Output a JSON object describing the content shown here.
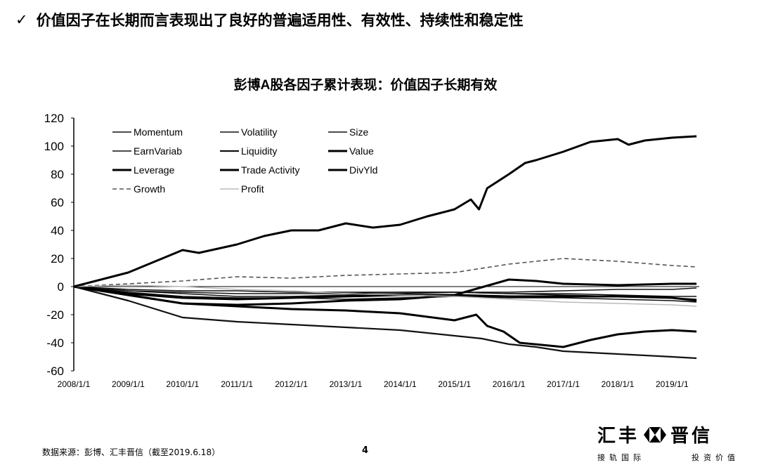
{
  "header": {
    "check_icon": "check-icon",
    "headline": "价值因子在长期而言表现出了良好的普遍适用性、有效性、持续性和稳定性"
  },
  "chart_data": {
    "type": "line",
    "title": "彭博A股各因子累计表现：价值因子长期有效",
    "xlabel": "",
    "ylabel": "",
    "ylim": [
      -60,
      120
    ],
    "yticks": [
      "120",
      "100",
      "80",
      "60",
      "40",
      "20",
      "0",
      "-20",
      "-40",
      "-60"
    ],
    "xlim": [
      2008.0,
      2019.5
    ],
    "xticks": [
      {
        "label": "2008/1/1",
        "value": 2008
      },
      {
        "label": "2009/1/1",
        "value": 2009
      },
      {
        "label": "2010/1/1",
        "value": 2010
      },
      {
        "label": "2011/1/1",
        "value": 2011
      },
      {
        "label": "2012/1/1",
        "value": 2012
      },
      {
        "label": "2013/1/1",
        "value": 2013
      },
      {
        "label": "2014/1/1",
        "value": 2014
      },
      {
        "label": "2015/1/1",
        "value": 2015
      },
      {
        "label": "2016/1/1",
        "value": 2016
      },
      {
        "label": "2017/1/1",
        "value": 2017
      },
      {
        "label": "2018/1/1",
        "value": 2018
      },
      {
        "label": "2019/1/1",
        "value": 2019
      }
    ],
    "grid": false,
    "legend_placement": "top-left",
    "series": [
      {
        "name": "Momentum",
        "style": "solid-thin",
        "x": [
          2008,
          2009,
          2010,
          2011,
          2012,
          2013,
          2014,
          2015,
          2016,
          2017,
          2018,
          2019,
          2019.45
        ],
        "y": [
          0,
          -3,
          -5,
          -7,
          -7,
          -6,
          -5,
          -4,
          -4,
          -3,
          -2,
          -2,
          -1
        ]
      },
      {
        "name": "Volatility",
        "style": "solid-thin",
        "x": [
          2008,
          2009,
          2010,
          2011,
          2012,
          2013,
          2014,
          2015,
          2016,
          2017,
          2018,
          2019,
          2019.45
        ],
        "y": [
          0,
          -3,
          -4,
          -5,
          -5,
          -5,
          -4,
          -4,
          -5,
          -6,
          -7,
          -8,
          -9
        ]
      },
      {
        "name": "Size",
        "style": "solid-thin",
        "x": [
          2008,
          2009,
          2010,
          2011,
          2012,
          2013,
          2014,
          2015,
          2016,
          2017,
          2018,
          2019,
          2019.45
        ],
        "y": [
          0,
          -4,
          -7,
          -8,
          -8,
          -9,
          -8,
          -7,
          -8,
          -8,
          -9,
          -10,
          -11
        ]
      },
      {
        "name": "EarnVariab",
        "style": "solid-thin",
        "x": [
          2008,
          2009,
          2010,
          2011,
          2012,
          2013,
          2014,
          2015,
          2016,
          2017,
          2018,
          2019,
          2019.45
        ],
        "y": [
          0,
          -2,
          -3,
          -3,
          -4,
          -4,
          -4,
          -4,
          -5,
          -5,
          -6,
          -7,
          -7
        ]
      },
      {
        "name": "Liquidity",
        "style": "solid",
        "x": [
          2008,
          2009,
          2010,
          2011,
          2012,
          2013,
          2014,
          2015,
          2015.5,
          2016,
          2016.5,
          2017,
          2018,
          2019,
          2019.45
        ],
        "y": [
          0,
          -10,
          -22,
          -25,
          -27,
          -29,
          -31,
          -35,
          -37,
          -41,
          -43,
          -46,
          -48,
          -50,
          -51
        ]
      },
      {
        "name": "Value",
        "style": "solid-thick",
        "x": [
          2008,
          2009,
          2009.5,
          2010,
          2010.3,
          2011,
          2011.5,
          2012,
          2012.5,
          2013,
          2013.5,
          2014,
          2014.5,
          2015,
          2015.3,
          2015.45,
          2015.6,
          2016,
          2016.3,
          2016.5,
          2017,
          2017.5,
          2018,
          2018.2,
          2018.5,
          2019,
          2019.45
        ],
        "y": [
          0,
          10,
          18,
          26,
          24,
          30,
          36,
          40,
          40,
          45,
          42,
          44,
          50,
          55,
          62,
          55,
          70,
          80,
          88,
          90,
          96,
          103,
          105,
          101,
          104,
          106,
          107
        ]
      },
      {
        "name": "Leverage",
        "style": "solid-thick",
        "x": [
          2008,
          2009,
          2010,
          2011,
          2012,
          2013,
          2014,
          2015,
          2015.4,
          2015.6,
          2015.9,
          2016.2,
          2017,
          2017.5,
          2018,
          2018.5,
          2019,
          2019.45
        ],
        "y": [
          0,
          -6,
          -12,
          -14,
          -16,
          -17,
          -19,
          -24,
          -20,
          -28,
          -32,
          -40,
          -43,
          -38,
          -34,
          -32,
          -31,
          -32
        ]
      },
      {
        "name": "Trade Activity",
        "style": "solid-thick",
        "x": [
          2008,
          2009,
          2010,
          2011,
          2012,
          2013,
          2014,
          2015,
          2016,
          2016.5,
          2017,
          2018,
          2019,
          2019.45
        ],
        "y": [
          0,
          -6,
          -12,
          -13,
          -12,
          -10,
          -9,
          -6,
          5,
          4,
          2,
          1,
          2,
          2
        ]
      },
      {
        "name": "DivYld",
        "style": "solid-thick",
        "x": [
          2008,
          2009,
          2010,
          2011,
          2012,
          2013,
          2014,
          2015,
          2016,
          2017,
          2018,
          2019,
          2019.45
        ],
        "y": [
          0,
          -5,
          -8,
          -9,
          -8,
          -7,
          -6,
          -6,
          -7,
          -7,
          -7,
          -8,
          -10
        ]
      },
      {
        "name": "Growth",
        "style": "dashed",
        "x": [
          2008,
          2009,
          2010,
          2011,
          2012,
          2013,
          2014,
          2015,
          2016,
          2016.5,
          2017,
          2018,
          2019,
          2019.45
        ],
        "y": [
          0,
          2,
          4,
          7,
          6,
          8,
          9,
          10,
          16,
          18,
          20,
          18,
          15,
          14
        ]
      },
      {
        "name": "Profit",
        "style": "light",
        "x": [
          2008,
          2009,
          2010,
          2011,
          2012,
          2013,
          2014,
          2015,
          2016,
          2017,
          2018,
          2019,
          2019.45
        ],
        "y": [
          0,
          1,
          0,
          -2,
          -3,
          -5,
          -6,
          -7,
          -9,
          -11,
          -12,
          -13,
          -14
        ]
      }
    ]
  },
  "footer": {
    "source": "数据来源：彭博、汇丰晋信（截至2019.6.18）",
    "page_number": "4"
  },
  "logo": {
    "name": "汇丰晋信",
    "tagline_left": "接轨国际",
    "tagline_right": "投资价值"
  }
}
